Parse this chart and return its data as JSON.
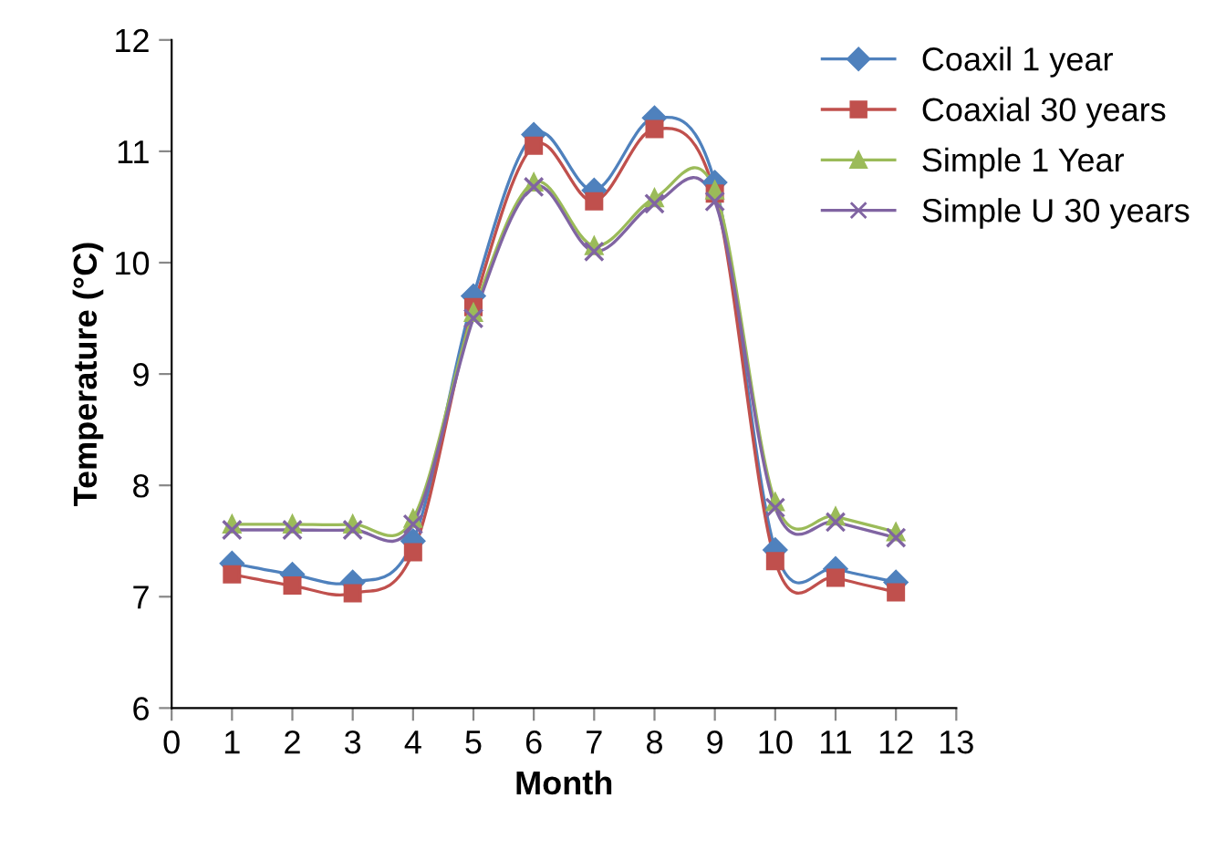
{
  "chart_data": {
    "type": "line",
    "xlabel": "Month",
    "ylabel": "Temperature (°C)",
    "x": [
      1,
      2,
      3,
      4,
      5,
      6,
      7,
      8,
      9,
      10,
      11,
      12
    ],
    "xlim": [
      0,
      13
    ],
    "xticks": [
      0,
      1,
      2,
      3,
      4,
      5,
      6,
      7,
      8,
      9,
      10,
      11,
      12,
      13
    ],
    "ylim": [
      6,
      12
    ],
    "yticks": [
      6,
      7,
      8,
      9,
      10,
      11,
      12
    ],
    "grid": false,
    "legend": "top right",
    "line_style": "solid",
    "series": [
      {
        "name": "Coaxil 1 year",
        "color": "#4f81bd",
        "marker": "diamond",
        "values": [
          7.3,
          7.2,
          7.13,
          7.5,
          9.7,
          11.15,
          10.65,
          11.3,
          10.72,
          7.42,
          7.25,
          7.13
        ]
      },
      {
        "name": "Coaxial 30 years",
        "color": "#c0504d",
        "marker": "square",
        "values": [
          7.2,
          7.1,
          7.03,
          7.4,
          9.6,
          11.05,
          10.55,
          11.2,
          10.62,
          7.32,
          7.17,
          7.04
        ]
      },
      {
        "name": "Simple 1 Year",
        "color": "#9bbb59",
        "marker": "triangle",
        "values": [
          7.65,
          7.65,
          7.65,
          7.7,
          9.55,
          10.72,
          10.15,
          10.58,
          10.65,
          7.85,
          7.72,
          7.58
        ]
      },
      {
        "name": "Simple U 30 years",
        "color": "#8064a2",
        "marker": "cross",
        "values": [
          7.6,
          7.6,
          7.6,
          7.65,
          9.5,
          10.68,
          10.1,
          10.53,
          10.55,
          7.8,
          7.67,
          7.53
        ]
      }
    ]
  }
}
